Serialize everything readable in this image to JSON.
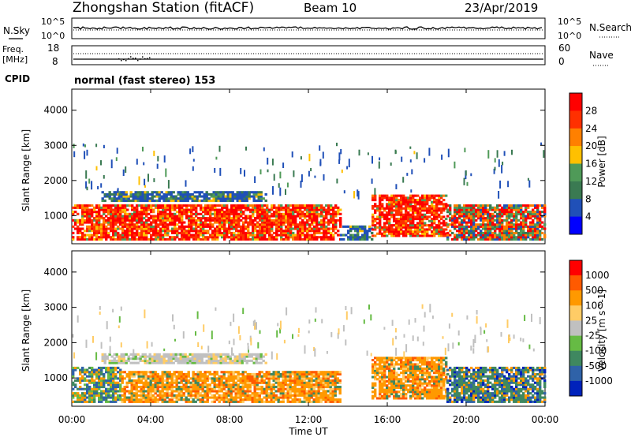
{
  "header": {
    "station": "Zhongshan Station (fitACF)",
    "beam": "Beam 10",
    "date": "23/Apr/2019"
  },
  "noise_panel": {
    "left_label": "N.Sky",
    "right_label": "N.Search",
    "left_ticks": [
      "10^5",
      "10^0"
    ],
    "right_ticks": [
      "10^5",
      "10^0"
    ]
  },
  "freq_panel": {
    "left_label_1": "Freq.",
    "left_label_2": "[MHz]",
    "right_label": "Nave",
    "left_ticks": [
      "18",
      "8"
    ],
    "right_ticks": [
      "60",
      "0"
    ]
  },
  "cpid": {
    "label": "CPID",
    "mode": "normal (fast stereo) 153"
  },
  "colors": {
    "power_scale": [
      "#0000ff",
      "#2050b8",
      "#3a7a52",
      "#4f9a58",
      "#ffc000",
      "#ff8000",
      "#ff3000",
      "#ff0000"
    ],
    "velocity_scale": [
      "#0022bb",
      "#2f62a8",
      "#3f8860",
      "#66bb44",
      "#c0c0c0",
      "#ffcc66",
      "#ff9900",
      "#ff5a00",
      "#ff0000"
    ]
  },
  "chart_data": [
    {
      "type": "heatmap",
      "title": "Power",
      "ylabel": "Slant Range [km]",
      "xlabel": "Time UT",
      "x_ticks": [
        "00:00",
        "04:00",
        "08:00",
        "12:00",
        "16:00",
        "20:00",
        "00:00"
      ],
      "xlim_hours": [
        0,
        24
      ],
      "y_ticks": [
        1000,
        2000,
        3000,
        4000
      ],
      "ylim": [
        200,
        4600
      ],
      "colorbar": {
        "label": "Power [dB]",
        "ticks": [
          4,
          8,
          12,
          16,
          20,
          24,
          28
        ],
        "range": [
          0,
          32
        ]
      },
      "regions": [
        {
          "t0": 0.0,
          "t1": 13.6,
          "r0": 300,
          "r1": 1300,
          "level": "high"
        },
        {
          "t0": 1.5,
          "t1": 9.8,
          "r0": 1400,
          "r1": 1700,
          "level": "low"
        },
        {
          "t0": 13.6,
          "t1": 15.2,
          "r0": 300,
          "r1": 700,
          "level": "low"
        },
        {
          "t0": 15.2,
          "t1": 19.0,
          "r0": 400,
          "r1": 1600,
          "level": "high"
        },
        {
          "t0": 19.0,
          "t1": 24.0,
          "r0": 300,
          "r1": 1300,
          "level": "mid"
        }
      ]
    },
    {
      "type": "heatmap",
      "title": "Velocity",
      "ylabel": "Slant Range [km]",
      "xlabel": "Time UT",
      "x_ticks": [
        "00:00",
        "04:00",
        "08:00",
        "12:00",
        "16:00",
        "20:00",
        "00:00"
      ],
      "xlim_hours": [
        0,
        24
      ],
      "y_ticks": [
        1000,
        2000,
        3000,
        4000
      ],
      "ylim": [
        200,
        4600
      ],
      "colorbar": {
        "label": "Velocity [m s^-1]",
        "ticks": [
          "1000",
          "500",
          "100",
          "25",
          "-25",
          "-100",
          "-500",
          "-1000"
        ]
      },
      "regions": [
        {
          "t0": 0.0,
          "t1": 2.5,
          "r0": 300,
          "r1": 1300,
          "level": "mixed"
        },
        {
          "t0": 2.5,
          "t1": 13.6,
          "r0": 300,
          "r1": 1200,
          "level": "negative"
        },
        {
          "t0": 1.5,
          "t1": 9.8,
          "r0": 1400,
          "r1": 1700,
          "level": "near-zero"
        },
        {
          "t0": 15.2,
          "t1": 19.0,
          "r0": 400,
          "r1": 1600,
          "level": "negative"
        },
        {
          "t0": 19.0,
          "t1": 24.0,
          "r0": 300,
          "r1": 1300,
          "level": "positive"
        }
      ]
    }
  ]
}
